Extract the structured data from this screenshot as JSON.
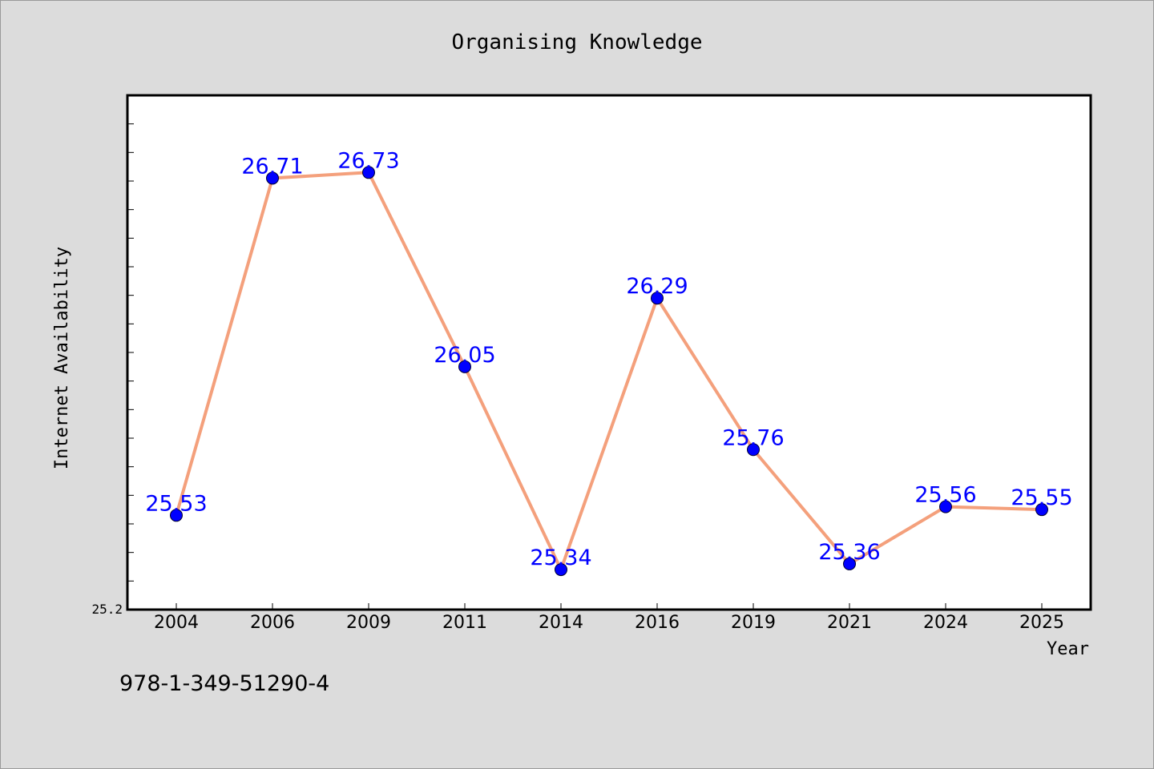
{
  "chart_data": {
    "type": "line",
    "title": "Organising Knowledge",
    "xlabel": "Year",
    "ylabel": "Internet Availability",
    "categories": [
      "2004",
      "2006",
      "2009",
      "2011",
      "2014",
      "2016",
      "2019",
      "2021",
      "2024",
      "2025"
    ],
    "series": [
      {
        "values": [
          25.53,
          26.71,
          26.73,
          26.05,
          25.34,
          26.29,
          25.76,
          25.36,
          25.56,
          25.55
        ],
        "line_color": "#f4a07c",
        "marker_color": "#0000ff",
        "label_color": "#0000ff"
      }
    ],
    "ylim": [
      25.2,
      27.0
    ],
    "y_tick_labels": [
      "25.2"
    ],
    "grid": false,
    "data_labels": true
  },
  "footer": {
    "isbn": "978-1-349-51290-4"
  }
}
